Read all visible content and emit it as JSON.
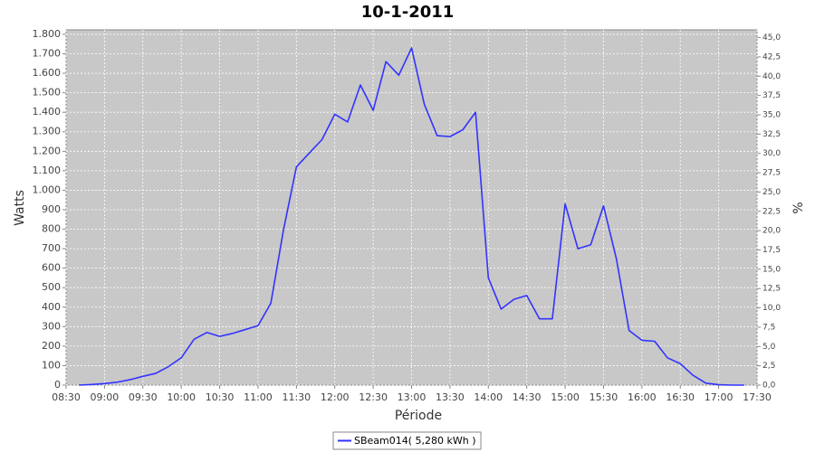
{
  "chart_data": {
    "type": "line",
    "title": "10-1-2011",
    "x_label": "Période",
    "y_label": "Watts",
    "y2_label": "%",
    "x": [
      "08:40",
      "08:50",
      "09:00",
      "09:10",
      "09:20",
      "09:30",
      "09:40",
      "09:50",
      "10:00",
      "10:10",
      "10:20",
      "10:30",
      "10:40",
      "10:50",
      "11:00",
      "11:10",
      "11:20",
      "11:30",
      "11:40",
      "11:50",
      "12:00",
      "12:10",
      "12:20",
      "12:30",
      "12:40",
      "12:50",
      "13:00",
      "13:10",
      "13:20",
      "13:30",
      "13:40",
      "13:50",
      "14:00",
      "14:10",
      "14:20",
      "14:30",
      "14:40",
      "14:50",
      "15:00",
      "15:10",
      "15:20",
      "15:30",
      "15:40",
      "15:50",
      "16:00",
      "16:10",
      "16:20",
      "16:30",
      "16:40",
      "16:50",
      "17:00",
      "17:10",
      "17:20"
    ],
    "series": [
      {
        "name": "SBeam014( 5,280 kWh )",
        "color": "#3333ff",
        "values": [
          0,
          3,
          8,
          15,
          28,
          45,
          60,
          95,
          140,
          235,
          270,
          250,
          265,
          285,
          305,
          420,
          800,
          1120,
          1190,
          1260,
          1390,
          1350,
          1540,
          1410,
          1660,
          1590,
          1730,
          1440,
          1280,
          1275,
          1310,
          1400,
          550,
          390,
          440,
          460,
          340,
          340,
          930,
          700,
          720,
          920,
          650,
          280,
          230,
          225,
          140,
          110,
          50,
          10,
          2,
          0,
          0
        ]
      }
    ],
    "xlim": [
      "08:30",
      "17:30"
    ],
    "xticks": [
      "08:30",
      "09:00",
      "09:30",
      "10:00",
      "10:30",
      "11:00",
      "11:30",
      "12:00",
      "12:30",
      "13:00",
      "13:30",
      "14:00",
      "14:30",
      "15:00",
      "15:30",
      "16:00",
      "16:30",
      "17:00",
      "17:30"
    ],
    "ylim": [
      0,
      1823
    ],
    "yticks": [
      0,
      100,
      200,
      300,
      400,
      500,
      600,
      700,
      800,
      900,
      {
        "value": 1000,
        "label": "1.000"
      },
      {
        "value": 1100,
        "label": "1.100"
      },
      {
        "value": 1200,
        "label": "1.200"
      },
      {
        "value": 1300,
        "label": "1.300"
      },
      {
        "value": 1400,
        "label": "1.400"
      },
      {
        "value": 1500,
        "label": "1.500"
      },
      {
        "value": 1600,
        "label": "1.600"
      },
      {
        "value": 1700,
        "label": "1.700"
      },
      {
        "value": 1800,
        "label": "1.800"
      }
    ],
    "y2lim": [
      0,
      46
    ],
    "y2ticks": [
      {
        "value": 0,
        "label": "0,0"
      },
      {
        "value": 2.5,
        "label": "2,5"
      },
      {
        "value": 5,
        "label": "5,0"
      },
      {
        "value": 7.5,
        "label": "7,5"
      },
      {
        "value": 10,
        "label": "10,0"
      },
      {
        "value": 12.5,
        "label": "12,5"
      },
      {
        "value": 15,
        "label": "15,0"
      },
      {
        "value": 17.5,
        "label": "17,5"
      },
      {
        "value": 20,
        "label": "20,0"
      },
      {
        "value": 22.5,
        "label": "22,5"
      },
      {
        "value": 25,
        "label": "25,0"
      },
      {
        "value": 27.5,
        "label": "27,5"
      },
      {
        "value": 30,
        "label": "30,0"
      },
      {
        "value": 32.5,
        "label": "32,5"
      },
      {
        "value": 35,
        "label": "35,0"
      },
      {
        "value": 37.5,
        "label": "37,5"
      },
      {
        "value": 40,
        "label": "40,0"
      },
      {
        "value": 42.5,
        "label": "42,5"
      },
      {
        "value": 45,
        "label": "45,0"
      }
    ],
    "grid": true,
    "legend": "bottom"
  }
}
